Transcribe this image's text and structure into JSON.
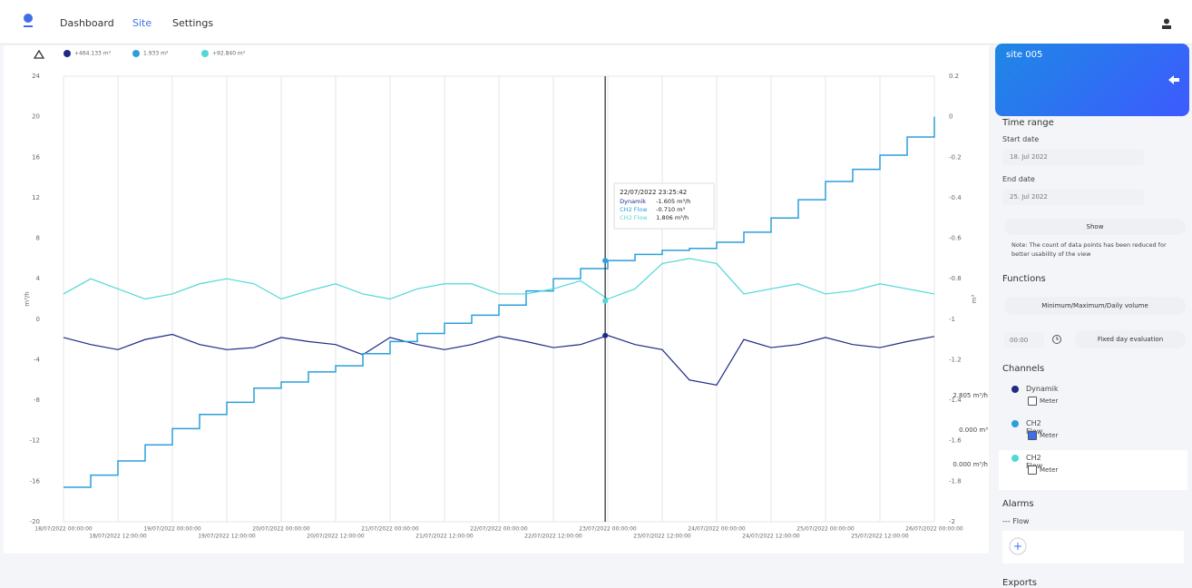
{
  "nav": {
    "items": [
      "Dashboard",
      "Site",
      "Settings"
    ]
  },
  "chart_data": {
    "type": "line",
    "legend": [
      "+464.133 m³",
      "1.933 m³",
      "+92.840 m³"
    ],
    "ylabel": "m³/h",
    "y2label": "m³",
    "xlim": [
      "18/07/2022 00:00:00",
      "26/07/2022 00:00:00"
    ],
    "xticks": [
      "18/07/2022 00:00:00",
      "18/07/2022 12:00:00",
      "19/07/2022 00:00:00",
      "19/07/2022 12:00:00",
      "20/07/2022 00:00:00",
      "20/07/2022 12:00:00",
      "21/07/2022 00:00:00",
      "21/07/2022 12:00:00",
      "22/07/2022 00:00:00",
      "22/07/2022 12:00:00",
      "23/07/2022 00:00:00",
      "23/07/2022 12:00:00",
      "24/07/2022 00:00:00",
      "24/07/2022 12:00:00",
      "25/07/2022 00:00:00",
      "25/07/2022 12:00:00",
      "26/07/2022 00:00:00"
    ],
    "ylim": [
      -20,
      24
    ],
    "yticks": [
      24,
      20,
      16,
      12,
      8,
      4,
      0,
      -4,
      -8,
      -12,
      -16,
      -20
    ],
    "y2lim": [
      -2,
      0.2
    ],
    "y2ticks": [
      0.2,
      0,
      -0.2,
      -0.4,
      -0.6,
      -0.8,
      -1,
      -1.2,
      -1.4,
      -1.6,
      -1.8,
      -2
    ],
    "grid": true,
    "x": [
      "18/07/2022 00:00:00",
      "18/07/2022 06:00:00",
      "18/07/2022 12:00:00",
      "18/07/2022 18:00:00",
      "19/07/2022 00:00:00",
      "19/07/2022 06:00:00",
      "19/07/2022 12:00:00",
      "19/07/2022 18:00:00",
      "20/07/2022 00:00:00",
      "20/07/2022 06:00:00",
      "20/07/2022 12:00:00",
      "20/07/2022 18:00:00",
      "21/07/2022 00:00:00",
      "21/07/2022 06:00:00",
      "21/07/2022 12:00:00",
      "21/07/2022 18:00:00",
      "22/07/2022 00:00:00",
      "22/07/2022 06:00:00",
      "22/07/2022 12:00:00",
      "22/07/2022 18:00:00",
      "23/07/2022 00:00:00",
      "23/07/2022 06:00:00",
      "23/07/2022 12:00:00",
      "23/07/2022 18:00:00",
      "24/07/2022 00:00:00",
      "24/07/2022 06:00:00",
      "24/07/2022 12:00:00",
      "24/07/2022 18:00:00",
      "25/07/2022 00:00:00",
      "25/07/2022 06:00:00",
      "25/07/2022 12:00:00",
      "25/07/2022 18:00:00",
      "26/07/2022 00:00:00"
    ],
    "series": [
      {
        "name": "Dynamik",
        "color": "#1f2a86",
        "values": [
          -1.8,
          -2.5,
          -3,
          -2,
          -1.5,
          -2.5,
          -3,
          -2.8,
          -1.8,
          -2.2,
          -2.5,
          -3.5,
          -1.8,
          -2.5,
          -3,
          -2.5,
          -1.7,
          -2.2,
          -2.8,
          -2.5,
          -1.6,
          -2.5,
          -3,
          -6,
          -6.5,
          -2,
          -2.8,
          -2.5,
          -1.8,
          -2.5,
          -2.8,
          -2.2,
          -1.7
        ]
      },
      {
        "name": "CH2 Flow",
        "color": "#2b9fdc",
        "axis": "y2",
        "step": true,
        "values": [
          -1.83,
          -1.77,
          -1.7,
          -1.62,
          -1.54,
          -1.47,
          -1.41,
          -1.34,
          -1.31,
          -1.26,
          -1.23,
          -1.17,
          -1.11,
          -1.07,
          -1.02,
          -0.98,
          -0.93,
          -0.86,
          -0.8,
          -0.75,
          -0.71,
          -0.68,
          -0.66,
          -0.65,
          -0.62,
          -0.57,
          -0.5,
          -0.41,
          -0.32,
          -0.26,
          -0.19,
          -0.1,
          0
        ]
      },
      {
        "name": "CH2 Flow",
        "color": "#4fd8d6",
        "values": [
          2.5,
          4,
          3,
          2,
          2.5,
          3.5,
          4,
          3.5,
          2,
          2.8,
          3.5,
          2.5,
          2,
          3,
          3.5,
          3.5,
          2.5,
          2.5,
          3,
          3.8,
          2,
          3,
          5.5,
          6,
          5.5,
          2.5,
          3,
          3.5,
          2.5,
          2.8,
          3.5,
          3,
          2.5
        ]
      }
    ],
    "tooltip": {
      "x": "22/07/2022 23:25:42",
      "lines": [
        "Dynamik",
        "CH2 Flow",
        "CH2 Flow"
      ],
      "texts": [
        "-1.605 m³/h",
        "-0.710 m³",
        "1.806 m³/h"
      ],
      "values": [
        -1.605,
        -0.71,
        1.806
      ]
    }
  },
  "panel": {
    "site": "site 005",
    "time_range": "Time range",
    "start_label": "Start date",
    "start": "18. Jul 2022",
    "end_label": "End date",
    "end": "25. Jul 2022",
    "show": "Show",
    "note": "Note: The count of data points has been reduced for better usability of the view",
    "functions": "Functions",
    "function_button": "Minimum/Maximum/Daily volume",
    "time": "00:00",
    "fixed": "Fixed day evaluation",
    "channels_title": "Channels",
    "channels": [
      {
        "name": "Dynamik",
        "meter": "Meter",
        "reading": "2.805 m³/h"
      },
      {
        "name": "CH2 Flow",
        "meter": "Meter",
        "reading": "0.000 m³"
      },
      {
        "name": "CH2 Flow",
        "meter": "Meter",
        "reading": "0.000 m³/h"
      }
    ],
    "alarms": "Alarms",
    "alarm": "Flow",
    "exports": "Exports"
  }
}
